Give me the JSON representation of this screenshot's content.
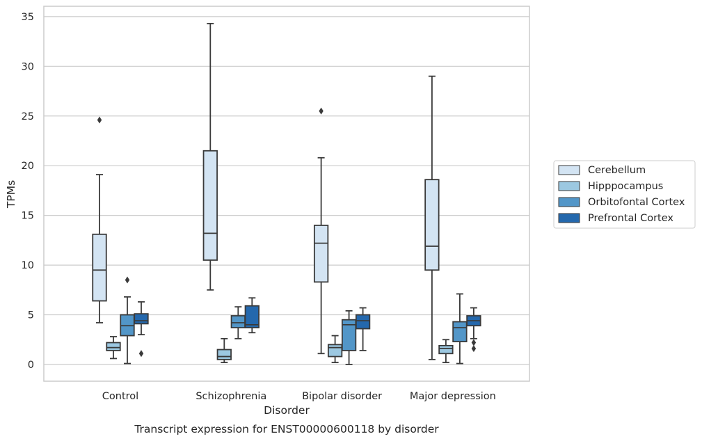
{
  "chart_data": {
    "type": "boxplot",
    "title": "",
    "caption": "Transcript expression for ENST00000600118 by disorder",
    "xlabel": "Disorder",
    "ylabel": "TPMs",
    "ylim": [
      -1.7,
      35.9
    ],
    "yticks": [
      0,
      5,
      10,
      15,
      20,
      25,
      30,
      35
    ],
    "grid": "horizontal",
    "legend_position": "right",
    "categories": [
      "Control",
      "Schizophrenia",
      "Bipolar disorder",
      "Major depression"
    ],
    "series": [
      {
        "name": "Cerebellum",
        "color": "#d3e4f3",
        "boxes": [
          {
            "whislo": 4.2,
            "q1": 6.4,
            "med": 9.5,
            "q3": 13.1,
            "whishi": 19.1,
            "fliers": [
              24.6
            ]
          },
          {
            "whislo": 7.5,
            "q1": 10.5,
            "med": 13.2,
            "q3": 21.5,
            "whishi": 34.3,
            "fliers": []
          },
          {
            "whislo": 1.1,
            "q1": 8.3,
            "med": 12.2,
            "q3": 14.0,
            "whishi": 20.8,
            "fliers": [
              25.5
            ]
          },
          {
            "whislo": 0.5,
            "q1": 9.5,
            "med": 11.9,
            "q3": 18.6,
            "whishi": 29.0,
            "fliers": []
          }
        ]
      },
      {
        "name": "Hipppocampus",
        "color": "#9cc8e1",
        "boxes": [
          {
            "whislo": 0.6,
            "q1": 1.4,
            "med": 1.7,
            "q3": 2.2,
            "whishi": 2.8,
            "fliers": []
          },
          {
            "whislo": 0.2,
            "q1": 0.5,
            "med": 0.8,
            "q3": 1.5,
            "whishi": 2.6,
            "fliers": []
          },
          {
            "whislo": 0.2,
            "q1": 0.8,
            "med": 1.7,
            "q3": 2.0,
            "whishi": 2.9,
            "fliers": []
          },
          {
            "whislo": 0.2,
            "q1": 1.1,
            "med": 1.6,
            "q3": 1.9,
            "whishi": 2.5,
            "fliers": []
          }
        ]
      },
      {
        "name": "Orbitofontal Cortex",
        "color": "#5296c8",
        "boxes": [
          {
            "whislo": 0.1,
            "q1": 2.9,
            "med": 3.9,
            "q3": 5.0,
            "whishi": 6.8,
            "fliers": [
              8.5
            ]
          },
          {
            "whislo": 2.6,
            "q1": 3.7,
            "med": 4.2,
            "q3": 4.9,
            "whishi": 5.8,
            "fliers": []
          },
          {
            "whislo": 0.0,
            "q1": 1.4,
            "med": 4.0,
            "q3": 4.5,
            "whishi": 5.4,
            "fliers": []
          },
          {
            "whislo": 0.1,
            "q1": 2.3,
            "med": 3.7,
            "q3": 4.3,
            "whishi": 7.1,
            "fliers": []
          }
        ]
      },
      {
        "name": "Prefrontal Cortex",
        "color": "#2468ad",
        "boxes": [
          {
            "whislo": 3.0,
            "q1": 4.1,
            "med": 4.4,
            "q3": 5.1,
            "whishi": 6.3,
            "fliers": [
              1.1
            ]
          },
          {
            "whislo": 3.2,
            "q1": 3.7,
            "med": 4.0,
            "q3": 5.9,
            "whishi": 6.7,
            "fliers": []
          },
          {
            "whislo": 1.4,
            "q1": 3.6,
            "med": 4.4,
            "q3": 5.0,
            "whishi": 5.7,
            "fliers": []
          },
          {
            "whislo": 2.6,
            "q1": 3.9,
            "med": 4.4,
            "q3": 4.9,
            "whishi": 5.7,
            "fliers": [
              2.2,
              1.6
            ]
          }
        ]
      }
    ]
  }
}
